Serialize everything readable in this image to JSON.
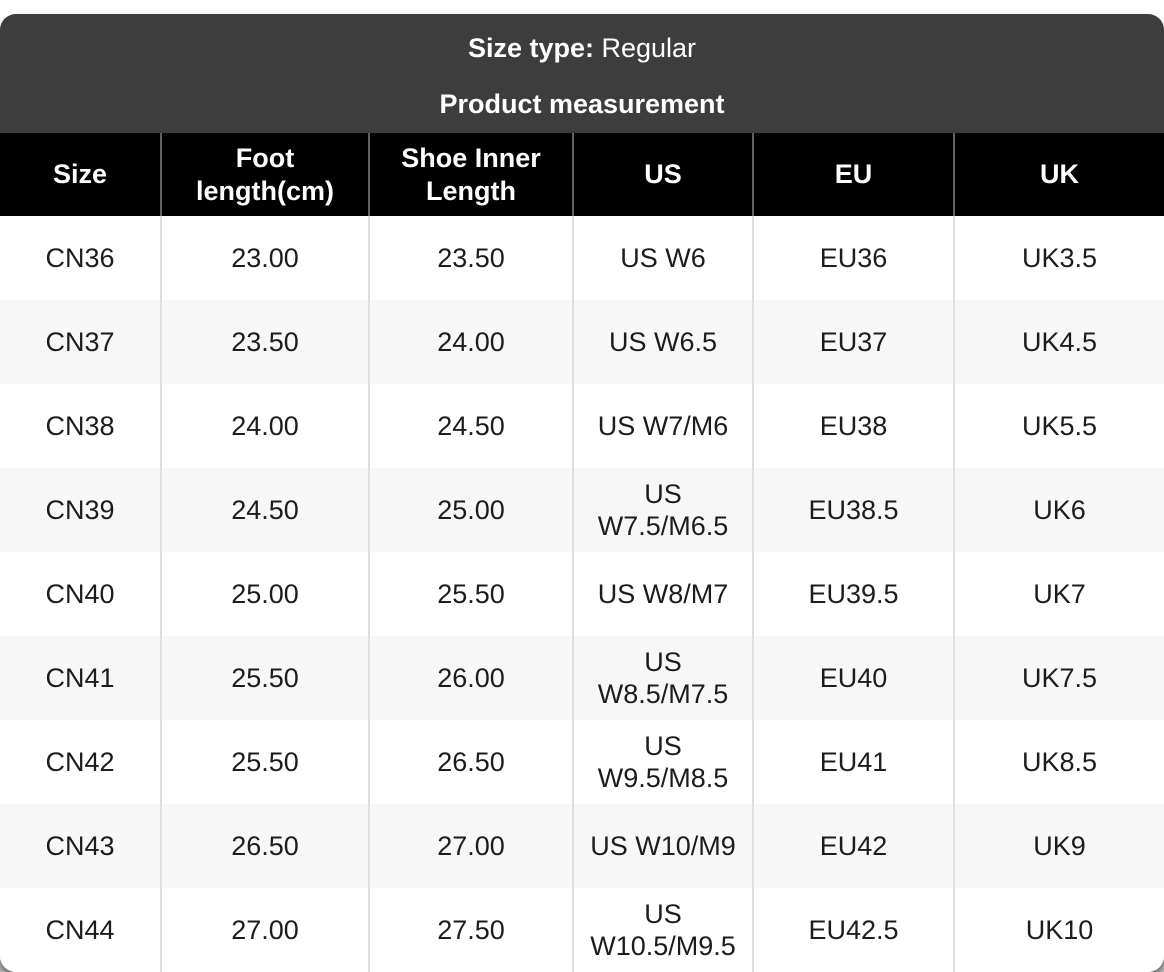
{
  "card": {
    "size_type_label": "Size type:",
    "size_type_value": "Regular",
    "subtitle": "Product measurement"
  },
  "table": {
    "columns": [
      "Size",
      "Foot length(cm)",
      "Shoe Inner Length",
      "US",
      "EU",
      "UK"
    ],
    "rows": [
      [
        "CN36",
        "23.00",
        "23.50",
        "US W6",
        "EU36",
        "UK3.5"
      ],
      [
        "CN37",
        "23.50",
        "24.00",
        "US W6.5",
        "EU37",
        "UK4.5"
      ],
      [
        "CN38",
        "24.00",
        "24.50",
        "US W7/M6",
        "EU38",
        "UK5.5"
      ],
      [
        "CN39",
        "24.50",
        "25.00",
        "US W7.5/M6.5",
        "EU38.5",
        "UK6"
      ],
      [
        "CN40",
        "25.00",
        "25.50",
        "US W8/M7",
        "EU39.5",
        "UK7"
      ],
      [
        "CN41",
        "25.50",
        "26.00",
        "US W8.5/M7.5",
        "EU40",
        "UK7.5"
      ],
      [
        "CN42",
        "25.50",
        "26.50",
        "US W9.5/M8.5",
        "EU41",
        "UK8.5"
      ],
      [
        "CN43",
        "26.50",
        "27.00",
        "US W10/M9",
        "EU42",
        "UK9"
      ],
      [
        "CN44",
        "27.00",
        "27.50",
        "US W10.5/M9.5",
        "EU42.5",
        "UK10"
      ]
    ]
  },
  "colors": {
    "card_header_bg": "#3d3d3d",
    "table_header_bg": "#000000",
    "row_alt_bg": "#f7f7f7",
    "header_text": "#ffffff",
    "body_text": "#1c1c1c"
  }
}
